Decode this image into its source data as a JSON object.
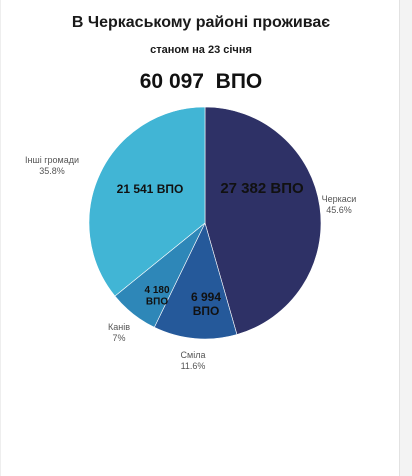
{
  "header": {
    "title": "В Черкаському районі проживає",
    "subtitle": "станом на 23 січня",
    "total": "60 097  ВПО"
  },
  "chart_data": {
    "type": "pie",
    "title": "В Черкаському районі проживає",
    "subtitle": "станом на 23 січня",
    "total_label": "60 097  ВПО",
    "slices": [
      {
        "name": "Черкаси",
        "percent": "45.6%",
        "value": 27382,
        "value_label": [
          "27 382 ВПО"
        ],
        "color": "#2e3166"
      },
      {
        "name": "Сміла",
        "percent": "11.6%",
        "value": 6994,
        "value_label": [
          "6 994",
          "ВПО"
        ],
        "color": "#25599a"
      },
      {
        "name": "Канів",
        "percent": "7%",
        "value": 4180,
        "value_label": [
          "4 180",
          "ВПО"
        ],
        "color": "#2e87b8"
      },
      {
        "name": "Інші громади",
        "percent": "35.8%",
        "value": 21541,
        "value_label": [
          "21 541 ВПО"
        ],
        "color": "#41b5d5"
      }
    ]
  }
}
